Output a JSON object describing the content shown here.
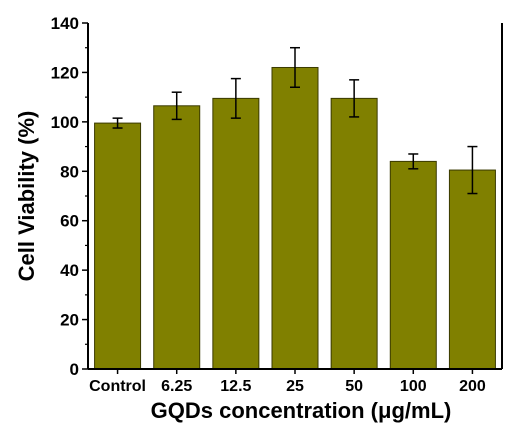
{
  "chart_data": {
    "type": "bar",
    "title": "",
    "xlabel": "GQDs concentration (μg/mL)",
    "ylabel": "Cell Viability (%)",
    "ylim": [
      0,
      140
    ],
    "yticks": [
      0,
      20,
      40,
      60,
      80,
      100,
      120,
      140
    ],
    "categories": [
      "Control",
      "6.25",
      "12.5",
      "25",
      "50",
      "100",
      "200"
    ],
    "values": [
      99.5,
      106.5,
      109.5,
      122,
      109.5,
      84,
      80.5
    ],
    "errors": [
      2,
      5.5,
      8,
      8,
      7.5,
      3,
      9.5
    ],
    "bar_color": "#808000",
    "bar_edge_color": "#3a3a00",
    "grid": false,
    "legend": "none"
  }
}
